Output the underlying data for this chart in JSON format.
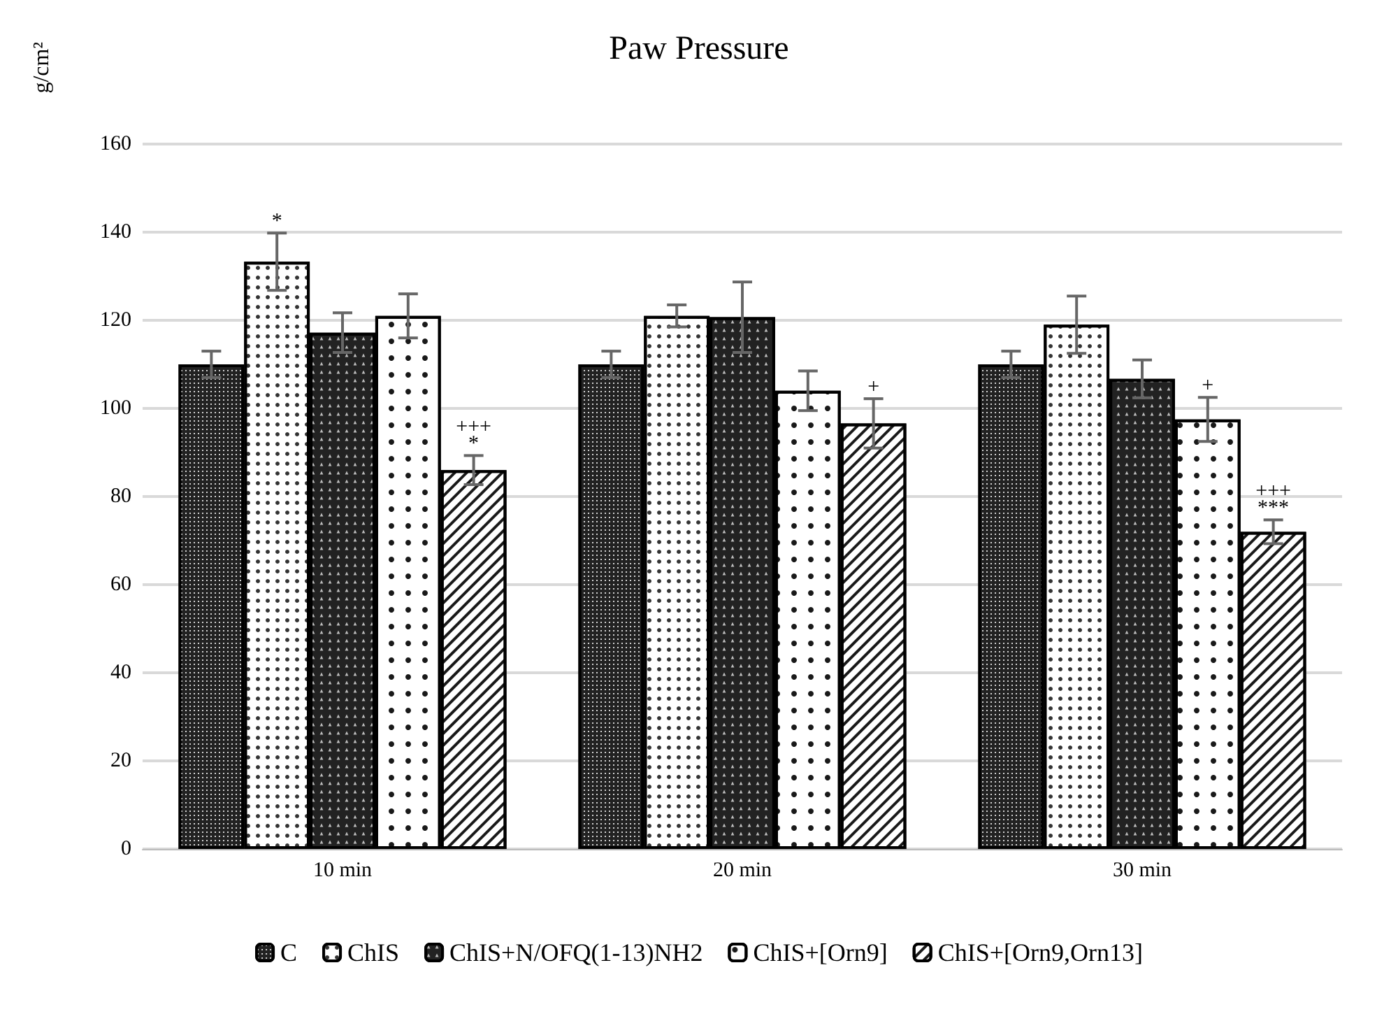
{
  "chart_data": {
    "type": "bar",
    "title": "Paw Pressure",
    "ylabel": "g/cm²",
    "categories": [
      "10 min",
      "20 min",
      "30 min"
    ],
    "series": [
      {
        "name": "C",
        "color": "#222222",
        "values": [
          110,
          110,
          110
        ],
        "errors": [
          3,
          3,
          3
        ]
      },
      {
        "name": "ChIS",
        "color": "#ffffff",
        "values": [
          133.3,
          121,
          119
        ],
        "errors": [
          6.5,
          2.5,
          6.5
        ],
        "value_labels": [
          "*",
          null,
          null
        ]
      },
      {
        "name": "ChIS+N/OFQ(1-13)NH2",
        "color": "#222222",
        "values": [
          117.2,
          120.7,
          106.7
        ],
        "errors": [
          4.5,
          8,
          4.3
        ]
      },
      {
        "name": "ChIS+[Orn9]",
        "color": "#ffffff",
        "values": [
          121,
          104,
          97.5
        ],
        "errors": [
          5,
          4.5,
          5
        ],
        "value_labels": [
          null,
          null,
          "+"
        ]
      },
      {
        "name": "ChIS+[Orn9,Orn13]",
        "color": "#ffffff",
        "values": [
          86,
          96.6,
          72
        ],
        "errors": [
          3.3,
          5.6,
          2.7
        ],
        "value_labels": [
          "+++\n*",
          "+",
          "+++\n***"
        ]
      }
    ],
    "ylim": [
      0,
      160
    ],
    "yticks": [
      0,
      20,
      40,
      60,
      80,
      100,
      120,
      140,
      160
    ],
    "grid": "y",
    "legend": "bottom"
  }
}
